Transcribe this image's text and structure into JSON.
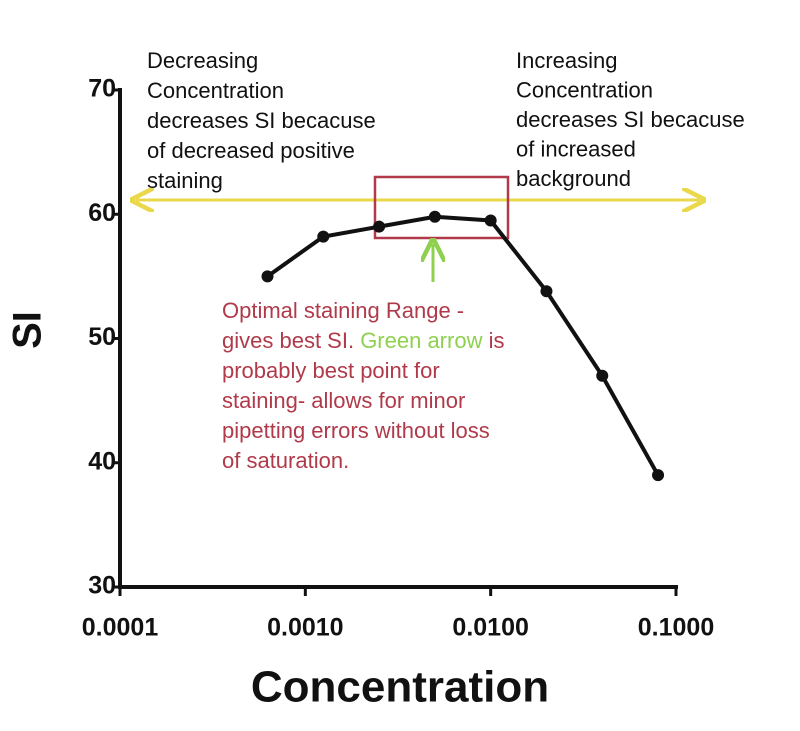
{
  "chart_data": {
    "type": "line",
    "xscale": "log",
    "x": [
      0.000625,
      0.00125,
      0.0025,
      0.005,
      0.01,
      0.02,
      0.04,
      0.08
    ],
    "values": [
      55,
      58.2,
      59,
      59.8,
      59.5,
      53.8,
      47,
      39
    ],
    "color": "#111111",
    "xlabel": "Concentration",
    "ylabel": "SI",
    "xlim": [
      0.0001,
      0.1
    ],
    "ylim": [
      30,
      70
    ],
    "xticks": [
      {
        "value": 0.0001,
        "label": "0.0001"
      },
      {
        "value": 0.001,
        "label": "0.0010"
      },
      {
        "value": 0.01,
        "label": "0.0100"
      },
      {
        "value": 0.1,
        "label": "0.1000"
      }
    ],
    "yticks": [
      30,
      40,
      50,
      60,
      70
    ],
    "annotations": [
      {
        "color": "#111111",
        "lines": [
          "Decreasing",
          "Concentration",
          "decreases SI becacuse",
          "of decreased positive",
          "staining"
        ]
      },
      {
        "color": "#111111",
        "lines": [
          "Increasing",
          "Concentration",
          "decreases SI becacuse",
          "of increased",
          "background"
        ]
      },
      {
        "color": "#b03a4a",
        "lines": [
          [
            {
              "text": "Optimal staining Range -"
            }
          ],
          [
            {
              "text": "gives best SI. "
            },
            {
              "text": "Green arrow",
              "color": "#8fd14f"
            },
            {
              "text": " is"
            }
          ],
          [
            {
              "text": "probably best point for"
            }
          ],
          [
            {
              "text": "staining- allows for minor"
            }
          ],
          [
            {
              "text": "pipetting errors without loss"
            }
          ],
          [
            {
              "text": "of saturation."
            }
          ]
        ]
      }
    ]
  }
}
